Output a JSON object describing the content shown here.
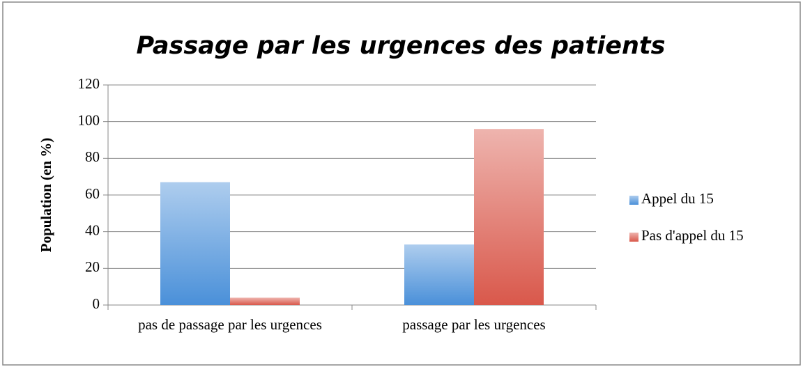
{
  "chart_data": {
    "type": "bar",
    "title": "Passage par les urgences des patients",
    "y_label": "Population (en %)",
    "categories": [
      "pas de passage par les urgences",
      "passage par les urgences"
    ],
    "series": [
      {
        "name": "Appel du 15",
        "color": "#4a90d9",
        "values": [
          67,
          33
        ]
      },
      {
        "name": "Pas d'appel du 15",
        "color": "#d9584b",
        "values": [
          4,
          96
        ]
      }
    ],
    "ylim": [
      0,
      120
    ],
    "yticks": [
      0,
      20,
      40,
      60,
      80,
      100,
      120
    ],
    "grid": true,
    "legend": "right"
  }
}
